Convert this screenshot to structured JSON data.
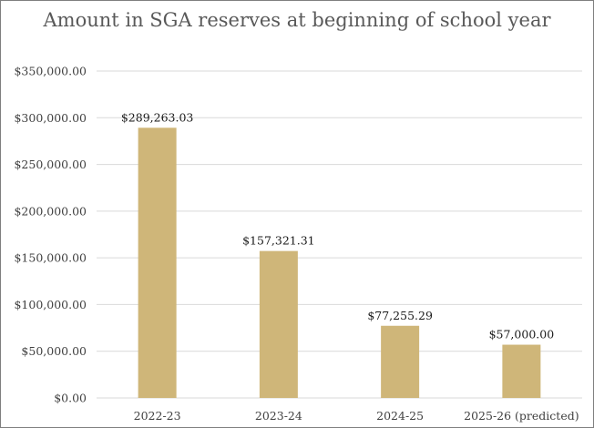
{
  "chart_data": {
    "type": "bar",
    "title": "Amount in SGA reserves at beginning of school year",
    "xlabel": "",
    "ylabel": "",
    "categories": [
      "2022-23",
      "2023-24",
      "2024-25",
      "2025-26 (predicted)"
    ],
    "values": [
      289263.03,
      157321.31,
      77255.29,
      57000.0
    ],
    "data_labels": [
      "$289,263.03",
      "$157,321.31",
      "$77,255.29",
      "$57,000.00"
    ],
    "ylim": [
      0,
      350000
    ],
    "yticks": [
      0,
      50000,
      100000,
      150000,
      200000,
      250000,
      300000,
      350000
    ],
    "ytick_labels": [
      "$0.00",
      "$50,000.00",
      "$100,000.00",
      "$150,000.00",
      "$200,000.00",
      "$250,000.00",
      "$300,000.00",
      "$350,000.00"
    ],
    "grid": true,
    "legend": "none",
    "bar_color": "#cfb679",
    "grid_color": "#d9d9d9"
  }
}
